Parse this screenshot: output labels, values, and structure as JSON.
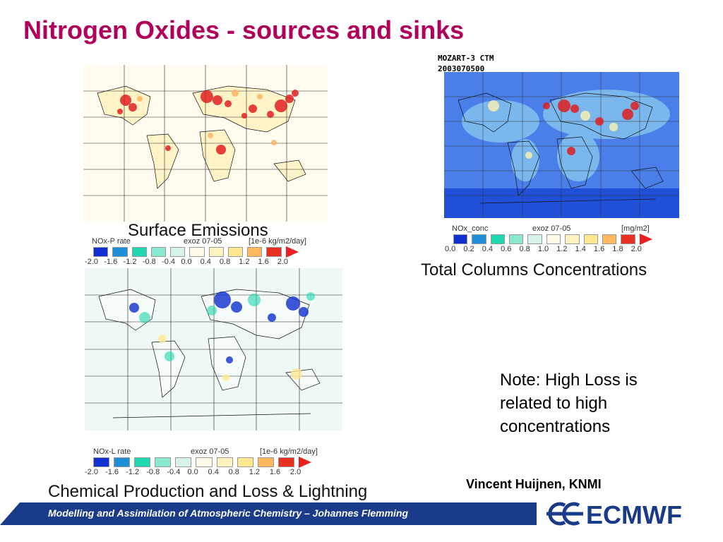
{
  "title": "Nitrogen Oxides - sources and sinks",
  "model_label": {
    "line1": "MOZART-3 CTM",
    "line2": "2003070500"
  },
  "maps": {
    "surface": {
      "caption": "Surface Emissions",
      "legend": {
        "name": "NOx-P rate",
        "run": "exoz 07-05",
        "unit": "[1e-6 kg/m2/day]",
        "ticks": [
          "-2.0",
          "-1.6",
          "-1.2",
          "-0.8",
          "-0.4",
          "0.0",
          "0.4",
          "0.8",
          "1.2",
          "1.6",
          "2.0"
        ]
      }
    },
    "column": {
      "caption": "Total Columns Concentrations",
      "legend": {
        "name": "NOx_conc",
        "run": "exoz 07-05",
        "unit": "[mg/m2]",
        "ticks": [
          "0.0",
          "0.2",
          "0.4",
          "0.6",
          "0.8",
          "1.0",
          "1.2",
          "1.4",
          "1.6",
          "1.8",
          "2.0"
        ]
      }
    },
    "chemical": {
      "caption": "Chemical Production and Loss & Lightning",
      "legend": {
        "name": "NOx-L rate",
        "run": "exoz 07-05",
        "unit": "[1e-6 kg/m2/day]",
        "ticks": [
          "-2.0",
          "-1.6",
          "-1.2",
          "-0.8",
          "-0.4",
          "0.0",
          "0.4",
          "0.8",
          "1.2",
          "1.6",
          "2.0"
        ]
      }
    }
  },
  "diverging_colors": [
    "#1030d0",
    "#1e8ed8",
    "#20d8b0",
    "#8ae8d0",
    "#d6f2ea",
    "#fffbe8",
    "#fff4c0",
    "#ffe890",
    "#ffb860",
    "#e83020",
    "#e82020"
  ],
  "sequential_colors": [
    "#1030d0",
    "#1e8ed8",
    "#20d8b0",
    "#8ae8d0",
    "#d6f2ea",
    "#fffbe8",
    "#fff4c0",
    "#ffe890",
    "#ffb860",
    "#e83020",
    "#e82020"
  ],
  "note": {
    "line1": "Note: High Loss is",
    "line2": "related to high",
    "line3": "concentrations"
  },
  "author": "Vincent Huijnen, KNMI",
  "footer": {
    "text": "Modelling and Assimilation of Atmospheric Chemistry  – Johannes Flemming",
    "logo": "ECMWF"
  },
  "accent_color": "#b0005a",
  "footer_color": "#1a3a8a"
}
